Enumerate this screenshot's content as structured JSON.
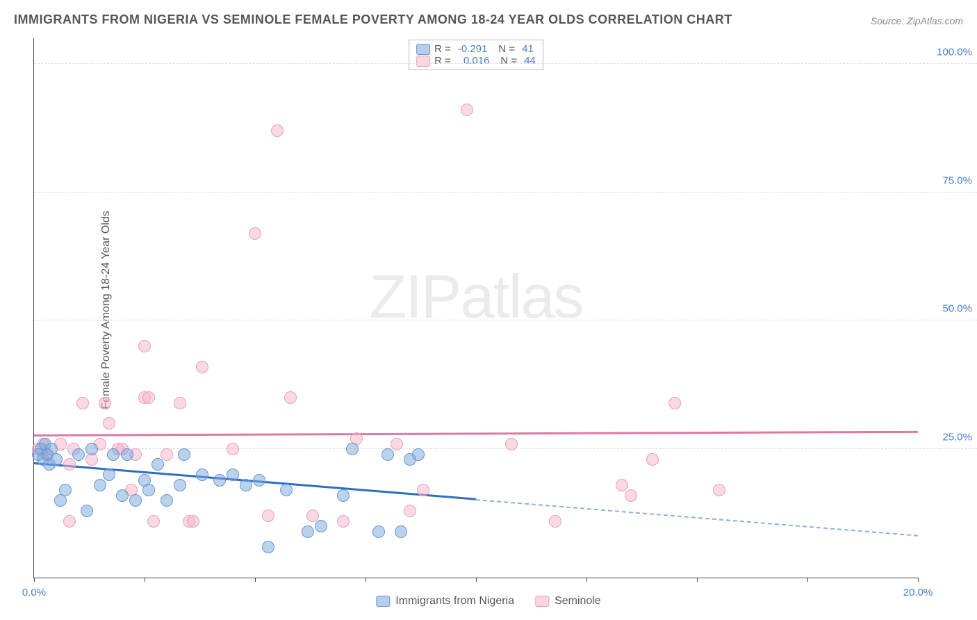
{
  "title": "IMMIGRANTS FROM NIGERIA VS SEMINOLE FEMALE POVERTY AMONG 18-24 YEAR OLDS CORRELATION CHART",
  "source": "Source: ZipAtlas.com",
  "watermark_a": "ZIP",
  "watermark_b": "atlas",
  "chart": {
    "type": "scatter",
    "ylabel": "Female Poverty Among 18-24 Year Olds",
    "xlim": [
      0,
      20
    ],
    "ylim": [
      0,
      105
    ],
    "xticks": [
      0,
      2.5,
      5,
      7.5,
      10,
      12.5,
      15,
      17.5,
      20
    ],
    "xtick_labels": {
      "0": "0.0%",
      "20": "20.0%"
    },
    "yticks": [
      25,
      50,
      75,
      100
    ],
    "ytick_labels": {
      "25": "25.0%",
      "50": "50.0%",
      "75": "75.0%",
      "100": "100.0%"
    },
    "background_color": "#ffffff",
    "grid_color": "#dddddd",
    "axis_color": "#444444",
    "tick_label_color": "#4a7ec9",
    "point_radius": 9,
    "series": [
      {
        "name": "Immigrants from Nigeria",
        "color_fill": "rgba(120,165,220,0.5)",
        "color_border": "#6a95d0",
        "R": "-0.291",
        "N": "41",
        "trend": {
          "y_start": 22,
          "y_end": 8,
          "solid_until_x": 10,
          "color_solid": "#2e6cc4",
          "color_dash": "#8ab0e0"
        },
        "points": [
          [
            0.1,
            24
          ],
          [
            0.15,
            25
          ],
          [
            0.2,
            23
          ],
          [
            0.25,
            26
          ],
          [
            0.3,
            24
          ],
          [
            0.35,
            22
          ],
          [
            0.4,
            25
          ],
          [
            0.5,
            23
          ],
          [
            0.6,
            15
          ],
          [
            0.7,
            17
          ],
          [
            1.0,
            24
          ],
          [
            1.2,
            13
          ],
          [
            1.3,
            25
          ],
          [
            1.5,
            18
          ],
          [
            1.7,
            20
          ],
          [
            1.8,
            24
          ],
          [
            2.0,
            16
          ],
          [
            2.1,
            24
          ],
          [
            2.3,
            15
          ],
          [
            2.5,
            19
          ],
          [
            2.6,
            17
          ],
          [
            2.8,
            22
          ],
          [
            3.0,
            15
          ],
          [
            3.3,
            18
          ],
          [
            3.4,
            24
          ],
          [
            3.8,
            20
          ],
          [
            4.2,
            19
          ],
          [
            4.5,
            20
          ],
          [
            4.8,
            18
          ],
          [
            5.1,
            19
          ],
          [
            5.3,
            6
          ],
          [
            5.7,
            17
          ],
          [
            6.2,
            9
          ],
          [
            6.5,
            10
          ],
          [
            7.0,
            16
          ],
          [
            7.2,
            25
          ],
          [
            7.8,
            9
          ],
          [
            8.0,
            24
          ],
          [
            8.3,
            9
          ],
          [
            8.5,
            23
          ],
          [
            8.7,
            24
          ]
        ]
      },
      {
        "name": "Seminole",
        "color_fill": "rgba(245,180,200,0.5)",
        "color_border": "#e8a0b5",
        "R": "0.016",
        "N": "44",
        "trend": {
          "y_start": 27.5,
          "y_end": 28.2,
          "solid_until_x": 20,
          "color_solid": "#e077a0"
        },
        "points": [
          [
            0.1,
            25
          ],
          [
            0.2,
            26
          ],
          [
            0.3,
            24
          ],
          [
            0.6,
            26
          ],
          [
            0.8,
            22
          ],
          [
            0.8,
            11
          ],
          [
            0.9,
            25
          ],
          [
            1.1,
            34
          ],
          [
            1.3,
            23
          ],
          [
            1.5,
            26
          ],
          [
            1.6,
            34
          ],
          [
            1.7,
            30
          ],
          [
            1.9,
            25
          ],
          [
            2.0,
            25
          ],
          [
            2.2,
            17
          ],
          [
            2.3,
            24
          ],
          [
            2.5,
            45
          ],
          [
            2.5,
            35
          ],
          [
            2.6,
            35
          ],
          [
            2.7,
            11
          ],
          [
            3.0,
            24
          ],
          [
            3.3,
            34
          ],
          [
            3.5,
            11
          ],
          [
            3.6,
            11
          ],
          [
            3.8,
            41
          ],
          [
            4.5,
            25
          ],
          [
            5.0,
            67
          ],
          [
            5.3,
            12
          ],
          [
            5.5,
            87
          ],
          [
            5.8,
            35
          ],
          [
            6.3,
            12
          ],
          [
            7.0,
            11
          ],
          [
            7.3,
            27
          ],
          [
            8.2,
            26
          ],
          [
            8.5,
            13
          ],
          [
            8.8,
            17
          ],
          [
            9.8,
            91
          ],
          [
            10.8,
            26
          ],
          [
            11.8,
            11
          ],
          [
            13.3,
            18
          ],
          [
            13.5,
            16
          ],
          [
            14.0,
            23
          ],
          [
            14.5,
            34
          ],
          [
            15.5,
            17
          ]
        ]
      }
    ]
  },
  "legend_bottom": [
    {
      "swatch": "blue",
      "label": "Immigrants from Nigeria"
    },
    {
      "swatch": "pink",
      "label": "Seminole"
    }
  ],
  "legend_top_labels": {
    "R": "R =",
    "N": "N ="
  }
}
